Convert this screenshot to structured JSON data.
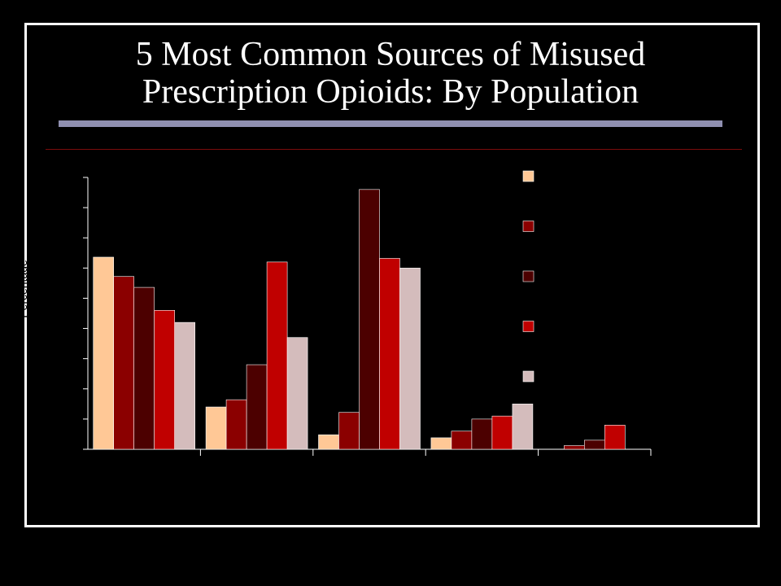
{
  "slide": {
    "title_line1": "5 Most Common Sources of Misused",
    "title_line2": "Prescription Opioids: By Population"
  },
  "colors": {
    "background": "#000000",
    "title_rule": "#8f8fb0",
    "accent_rule": "#7a0c0c"
  },
  "chart_data": {
    "type": "bar",
    "categories": [
      "",
      "",
      "",
      "",
      ""
    ],
    "ylabel": "Percentage",
    "ylim": [
      0,
      45
    ],
    "grid": false,
    "legend_position": "right",
    "series": [
      {
        "color": "#ffc896",
        "values": [
          31.8,
          7.0,
          2.4,
          1.9,
          0
        ]
      },
      {
        "color": "#8b0000",
        "values": [
          28.6,
          8.2,
          6.1,
          3.0,
          0.6
        ]
      },
      {
        "color": "#4c0000",
        "values": [
          26.8,
          14.0,
          43.0,
          5.0,
          1.5
        ]
      },
      {
        "color": "#c00000",
        "values": [
          23.0,
          31.0,
          31.6,
          5.5,
          4.0
        ]
      },
      {
        "color": "#d4bcbc",
        "values": [
          21.0,
          18.5,
          30.0,
          7.5,
          0
        ]
      }
    ]
  }
}
